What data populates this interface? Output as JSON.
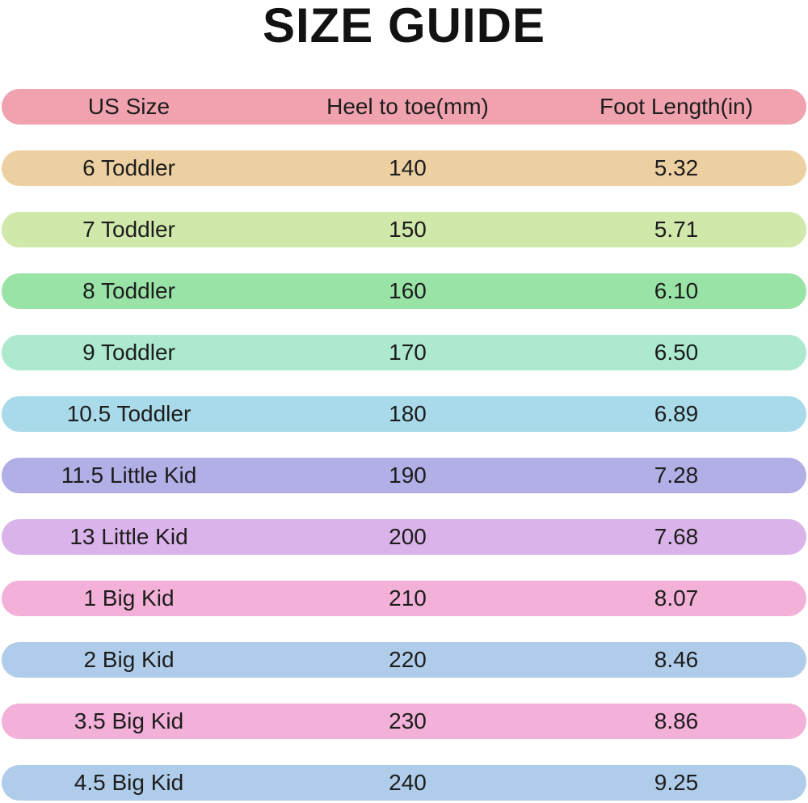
{
  "title": "SIZE GUIDE",
  "table": {
    "headers": [
      "US Size",
      "Heel to toe(mm)",
      "Foot Length(in)"
    ],
    "header_bg": "#f0a2ae",
    "text_color": "#1d1d1d",
    "rows": [
      {
        "us_size": "6 Toddler",
        "heel_to_toe_mm": "140",
        "foot_length_in": "5.32",
        "bg": "#edd0a2"
      },
      {
        "us_size": "7 Toddler",
        "heel_to_toe_mm": "150",
        "foot_length_in": "5.71",
        "bg": "#d0e8aa"
      },
      {
        "us_size": "8 Toddler",
        "heel_to_toe_mm": "160",
        "foot_length_in": "6.10",
        "bg": "#99e3a6"
      },
      {
        "us_size": "9 Toddler",
        "heel_to_toe_mm": "170",
        "foot_length_in": "6.50",
        "bg": "#ace9cf"
      },
      {
        "us_size": "10.5 Toddler",
        "heel_to_toe_mm": "180",
        "foot_length_in": "6.89",
        "bg": "#a9dae9"
      },
      {
        "us_size": "11.5 Little Kid",
        "heel_to_toe_mm": "190",
        "foot_length_in": "7.28",
        "bg": "#b2aee6"
      },
      {
        "us_size": "13 Little Kid",
        "heel_to_toe_mm": "200",
        "foot_length_in": "7.68",
        "bg": "#d9b3e9"
      },
      {
        "us_size": "1 Big Kid",
        "heel_to_toe_mm": "210",
        "foot_length_in": "8.07",
        "bg": "#f3b0d8"
      },
      {
        "us_size": "2 Big Kid",
        "heel_to_toe_mm": "220",
        "foot_length_in": "8.46",
        "bg": "#afcdea"
      },
      {
        "us_size": "3.5 Big Kid",
        "heel_to_toe_mm": "230",
        "foot_length_in": "8.86",
        "bg": "#f3b0d8"
      },
      {
        "us_size": "4.5 Big Kid",
        "heel_to_toe_mm": "240",
        "foot_length_in": "9.25",
        "bg": "#afcdea"
      }
    ]
  },
  "chart_data": {
    "type": "table",
    "title": "SIZE GUIDE",
    "columns": [
      "US Size",
      "Heel to toe(mm)",
      "Foot Length(in)"
    ],
    "rows": [
      [
        "6 Toddler",
        140,
        5.32
      ],
      [
        "7 Toddler",
        150,
        5.71
      ],
      [
        "8 Toddler",
        160,
        6.1
      ],
      [
        "9 Toddler",
        170,
        6.5
      ],
      [
        "10.5 Toddler",
        180,
        6.89
      ],
      [
        "11.5 Little Kid",
        190,
        7.28
      ],
      [
        "13 Little Kid",
        200,
        7.68
      ],
      [
        "1 Big Kid",
        210,
        8.07
      ],
      [
        "2 Big Kid",
        220,
        8.46
      ],
      [
        "3.5 Big Kid",
        230,
        8.86
      ],
      [
        "4.5 Big Kid",
        240,
        9.25
      ]
    ]
  }
}
